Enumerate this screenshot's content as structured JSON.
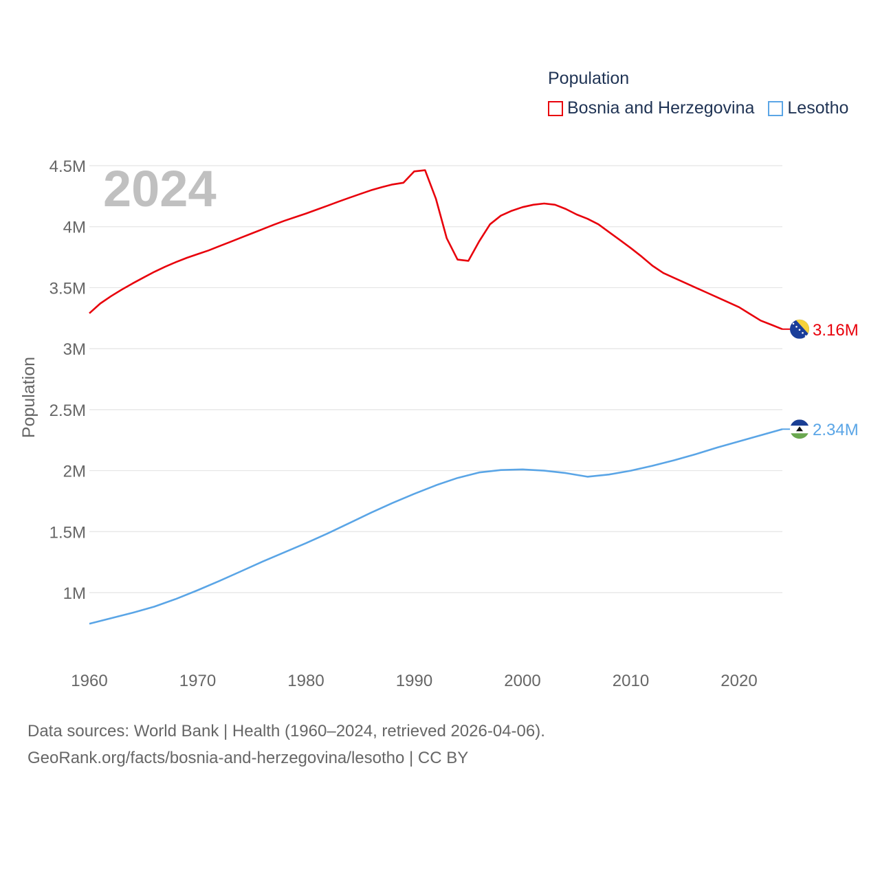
{
  "legend": {
    "title": "Population",
    "items": [
      {
        "label": "Bosnia and Herzegovina",
        "color": "#e8000b"
      },
      {
        "label": "Lesotho",
        "color": "#5aa5e6"
      }
    ]
  },
  "footer": {
    "line1": "Data sources: World Bank | Health (1960–2024, retrieved 2026-04-06).",
    "line2": "GeoRank.org/facts/bosnia-and-herzegovina/lesotho | CC BY"
  },
  "chart_data": {
    "type": "line",
    "title": "Population",
    "year_label": "2024",
    "xlabel": "",
    "ylabel": "Population",
    "xlim": [
      1960,
      2024
    ],
    "ylim": [
      500000,
      4700000
    ],
    "x_ticks": [
      1960,
      1970,
      1980,
      1990,
      2000,
      2010,
      2020
    ],
    "x_tick_labels": [
      "1960",
      "1970",
      "1980",
      "1990",
      "2000",
      "2010",
      "2020"
    ],
    "y_ticks": [
      1000000,
      1500000,
      2000000,
      2500000,
      3000000,
      3500000,
      4000000,
      4500000
    ],
    "y_tick_labels": [
      "1M",
      "1.5M",
      "2M",
      "2.5M",
      "3M",
      "3.5M",
      "4M",
      "4.5M"
    ],
    "grid": true,
    "legend_position": "top-right",
    "series": [
      {
        "name": "Bosnia and Herzegovina",
        "color": "#e8000b",
        "end_label": "3.16M",
        "flag": "bosnia-flag-icon",
        "x": [
          1960,
          1961,
          1962,
          1963,
          1964,
          1965,
          1966,
          1967,
          1968,
          1969,
          1970,
          1971,
          1972,
          1973,
          1974,
          1975,
          1976,
          1977,
          1978,
          1979,
          1980,
          1981,
          1982,
          1983,
          1984,
          1985,
          1986,
          1987,
          1988,
          1989,
          1990,
          1991,
          1992,
          1993,
          1994,
          1995,
          1996,
          1997,
          1998,
          1999,
          2000,
          2001,
          2002,
          2003,
          2004,
          2005,
          2006,
          2007,
          2008,
          2009,
          2010,
          2011,
          2012,
          2013,
          2014,
          2015,
          2016,
          2017,
          2018,
          2019,
          2020,
          2021,
          2022,
          2023,
          2024
        ],
        "values": [
          3290000,
          3370000,
          3430000,
          3485000,
          3535000,
          3583000,
          3630000,
          3672000,
          3710000,
          3745000,
          3775000,
          3805000,
          3840000,
          3875000,
          3910000,
          3945000,
          3980000,
          4015000,
          4048000,
          4078000,
          4108000,
          4140000,
          4172000,
          4205000,
          4237000,
          4268000,
          4298000,
          4324000,
          4346000,
          4360000,
          4453000,
          4463000,
          4230000,
          3905000,
          3730000,
          3720000,
          3880000,
          4020000,
          4090000,
          4130000,
          4160000,
          4180000,
          4190000,
          4180000,
          4145000,
          4100000,
          4065000,
          4020000,
          3955000,
          3890000,
          3825000,
          3755000,
          3680000,
          3620000,
          3580000,
          3540000,
          3500000,
          3460000,
          3420000,
          3380000,
          3340000,
          3285000,
          3230000,
          3195000,
          3160000
        ]
      },
      {
        "name": "Lesotho",
        "color": "#5aa5e6",
        "end_label": "2.34M",
        "flag": "lesotho-flag-icon",
        "x": [
          1960,
          1962,
          1964,
          1966,
          1968,
          1970,
          1972,
          1974,
          1976,
          1978,
          1980,
          1982,
          1984,
          1986,
          1988,
          1990,
          1992,
          1994,
          1996,
          1998,
          2000,
          2002,
          2004,
          2006,
          2008,
          2010,
          2012,
          2014,
          2016,
          2018,
          2020,
          2022,
          2024
        ],
        "values": [
          745000,
          790000,
          835000,
          885000,
          948000,
          1020000,
          1095000,
          1175000,
          1255000,
          1330000,
          1405000,
          1485000,
          1570000,
          1655000,
          1735000,
          1810000,
          1880000,
          1940000,
          1985000,
          2005000,
          2010000,
          2000000,
          1980000,
          1950000,
          1968000,
          2000000,
          2040000,
          2085000,
          2135000,
          2190000,
          2240000,
          2290000,
          2340000
        ]
      }
    ]
  }
}
